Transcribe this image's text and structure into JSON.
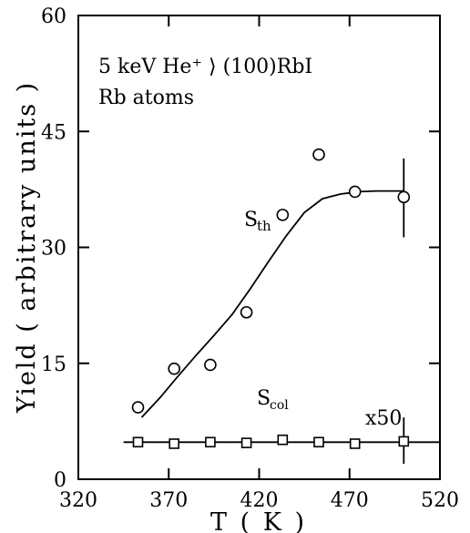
{
  "chart_data": {
    "type": "scatter",
    "xlabel": "T ( K )",
    "ylabel": "Yield ( arbitrary units )",
    "xlim": [
      320,
      520
    ],
    "ylim": [
      0,
      60
    ],
    "x_ticks": [
      320,
      370,
      420,
      470,
      520
    ],
    "y_ticks": [
      0,
      15,
      30,
      45,
      60
    ],
    "grid": false,
    "annotations": {
      "line1": "5 keV He⁺ ⟩ (100)RbI",
      "line2": "Rb atoms",
      "sth_main": "S",
      "sth_sub": "th",
      "scol_main": "S",
      "scol_sub": "col",
      "multiplier": "x50"
    },
    "series": [
      {
        "marker": "circle",
        "x": [
          353,
          373,
          393,
          413,
          433,
          453,
          473,
          500
        ],
        "y": [
          9.3,
          14.3,
          14.8,
          21.6,
          34.2,
          42.0,
          37.2,
          36.5
        ],
        "error_bar_at": 500,
        "error_bar_range": [
          31.3,
          41.5
        ]
      },
      {
        "marker": "square",
        "x": [
          353,
          373,
          393,
          413,
          433,
          453,
          473,
          500
        ],
        "y": [
          4.8,
          4.6,
          4.8,
          4.7,
          5.1,
          4.8,
          4.6,
          4.9
        ],
        "error_bar_at": 500,
        "error_bar_range": [
          2.0,
          8.0
        ]
      }
    ],
    "fit_curves": [
      {
        "x": [
          355,
          365,
          375,
          385,
          395,
          405,
          415,
          425,
          435,
          445,
          455,
          465,
          475,
          485,
          495,
          500
        ],
        "y": [
          8.0,
          10.5,
          13.3,
          16.0,
          18.6,
          21.3,
          24.6,
          28.1,
          31.5,
          34.5,
          36.3,
          36.9,
          37.2,
          37.3,
          37.3,
          37.3
        ]
      },
      {
        "x": [
          345,
          520
        ],
        "y": [
          4.8,
          4.8
        ]
      }
    ]
  }
}
